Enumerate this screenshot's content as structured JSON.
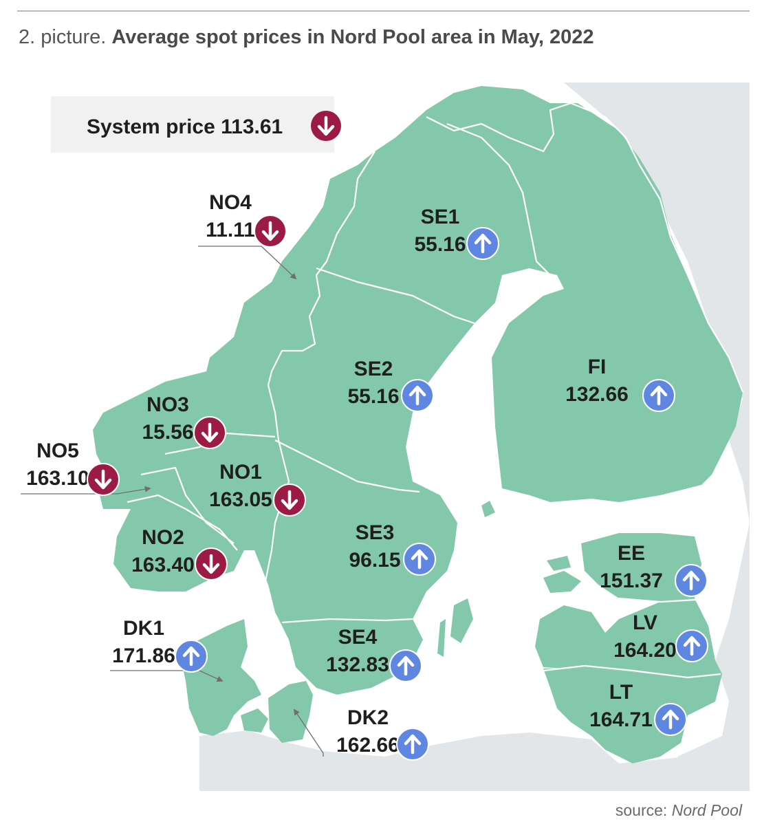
{
  "title": {
    "prefix": "2. picture.",
    "main": "Average spot prices in Nord Pool area in May, 2022"
  },
  "system_price": {
    "label": "System price 113.61",
    "trend": "down"
  },
  "source": {
    "prefix": "source:",
    "name": "Nord Pool"
  },
  "colors": {
    "land_area": "#84c8ab",
    "land_other": "#e3e6e9",
    "sea": "#ffffff",
    "border": "#ffffff",
    "down_badge": "#9b1b45",
    "up_badge": "#5f86e0",
    "system_box": "#f1f1f1"
  },
  "icons": {
    "down": "arrow-down-circle-icon",
    "up": "arrow-up-circle-icon"
  },
  "zones": [
    {
      "id": "NO4",
      "name": "NO4",
      "price": "11.11",
      "trend": "down"
    },
    {
      "id": "SE1",
      "name": "SE1",
      "price": "55.16",
      "trend": "up"
    },
    {
      "id": "SE2",
      "name": "SE2",
      "price": "55.16",
      "trend": "up"
    },
    {
      "id": "FI",
      "name": "FI",
      "price": "132.66",
      "trend": "up"
    },
    {
      "id": "NO3",
      "name": "NO3",
      "price": "15.56",
      "trend": "down"
    },
    {
      "id": "NO5",
      "name": "NO5",
      "price": "163.10",
      "trend": "down"
    },
    {
      "id": "NO1",
      "name": "NO1",
      "price": "163.05",
      "trend": "down"
    },
    {
      "id": "NO2",
      "name": "NO2",
      "price": "163.40",
      "trend": "down"
    },
    {
      "id": "SE3",
      "name": "SE3",
      "price": "96.15",
      "trend": "up"
    },
    {
      "id": "EE",
      "name": "EE",
      "price": "151.37",
      "trend": "up"
    },
    {
      "id": "DK1",
      "name": "DK1",
      "price": "171.86",
      "trend": "up"
    },
    {
      "id": "LV",
      "name": "LV",
      "price": "164.20",
      "trend": "up"
    },
    {
      "id": "SE4",
      "name": "SE4",
      "price": "132.83",
      "trend": "up"
    },
    {
      "id": "LT",
      "name": "LT",
      "price": "164.71",
      "trend": "up"
    },
    {
      "id": "DK2",
      "name": "DK2",
      "price": "162.66",
      "trend": "up"
    }
  ]
}
